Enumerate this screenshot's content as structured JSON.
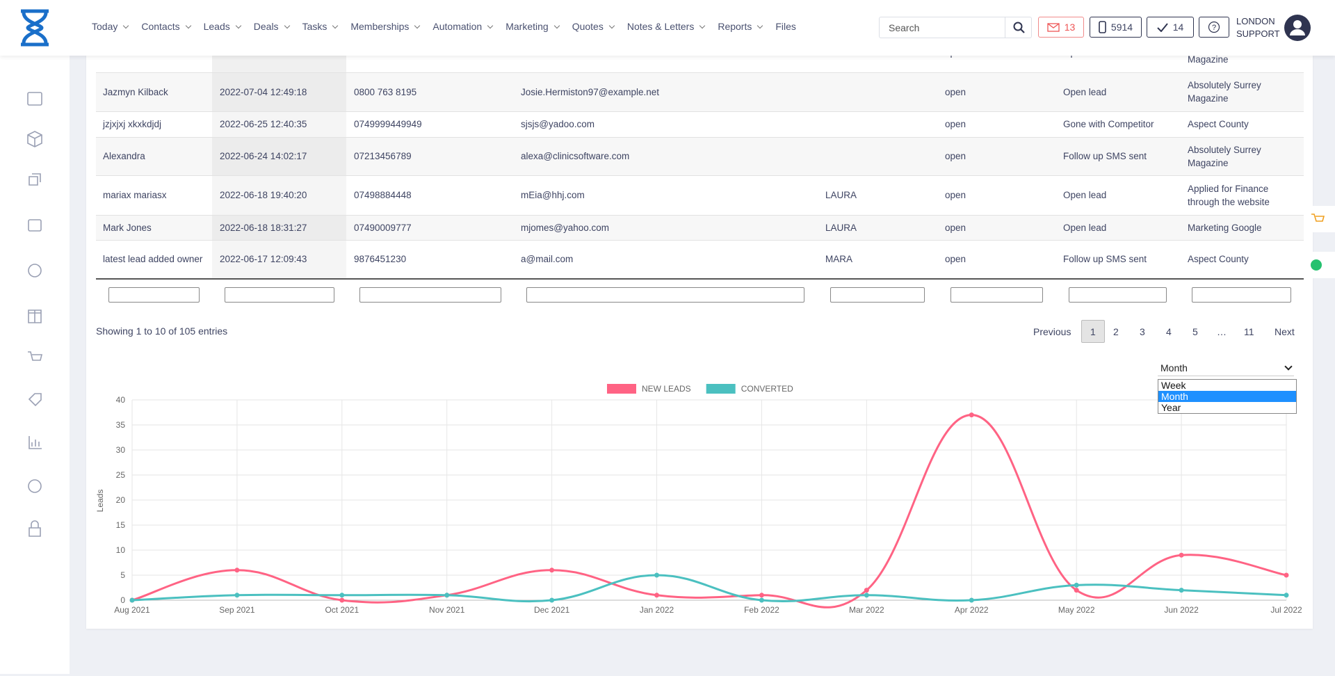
{
  "nav": {
    "items": [
      {
        "label": "Today",
        "menu": true
      },
      {
        "label": "Contacts",
        "menu": true
      },
      {
        "label": "Leads",
        "menu": true
      },
      {
        "label": "Deals",
        "menu": true
      },
      {
        "label": "Tasks",
        "menu": true
      },
      {
        "label": "Memberships",
        "menu": true
      },
      {
        "label": "Automation",
        "menu": true
      },
      {
        "label": "Marketing",
        "menu": true
      },
      {
        "label": "Quotes",
        "menu": true
      },
      {
        "label": "Notes & Letters",
        "menu": true
      },
      {
        "label": "Reports",
        "menu": true
      },
      {
        "label": "Files",
        "menu": false
      }
    ],
    "search_placeholder": "Search",
    "mail_count": "13",
    "phone_count": "5914",
    "task_count": "14",
    "user": [
      "LONDON",
      "SUPPORT"
    ]
  },
  "table": {
    "partial_row": [
      "open",
      "Open lead",
      "Magazine"
    ],
    "rows": [
      [
        "Jazmyn Kilback",
        "2022-07-04 12:49:18",
        "0800 763 8195",
        "Josie.Hermiston97@example.net",
        null,
        "open",
        "Open lead",
        "Absolutely Surrey Magazine"
      ],
      [
        "jzjxjxj xkxkdjdj",
        "2022-06-25 12:40:35",
        "0749999449949",
        "sjsjs@yadoo.com",
        null,
        "open",
        "Gone with Competitor",
        "Aspect County"
      ],
      [
        "Alexandra",
        "2022-06-24 14:02:17",
        "07213456789",
        "alexa@clinicsoftware.com",
        null,
        "open",
        "Follow up SMS sent",
        "Absolutely Surrey Magazine"
      ],
      [
        "mariax mariasx",
        "2022-06-18 19:40:20",
        "07498884448",
        "mEia@hhj.com",
        "LAURA",
        "open",
        "Open lead",
        "Applied for Finance through the website"
      ],
      [
        "Mark Jones",
        "2022-06-18 18:31:27",
        "07490009777",
        "mjomes@yahoo.com",
        "LAURA",
        "open",
        "Open lead",
        "Marketing Google"
      ],
      [
        "latest lead added owner",
        "2022-06-17 12:09:43",
        "9876451230",
        "a@mail.com",
        "MARA",
        "open",
        "Follow up SMS sent",
        "Aspect County"
      ]
    ]
  },
  "footer": {
    "info": "Showing 1 to 10 of 105 entries",
    "pages": [
      "Previous",
      "1",
      "2",
      "3",
      "4",
      "5",
      "…",
      "11",
      "Next"
    ],
    "current": "1"
  },
  "period_select": {
    "selected": "Month",
    "options": [
      "Week",
      "Month",
      "Year"
    ]
  },
  "chart_data": {
    "type": "line",
    "y_label": "Leads",
    "categories": [
      "Aug 2021",
      "Sep 2021",
      "Oct 2021",
      "Nov 2021",
      "Dec 2021",
      "Jan 2022",
      "Feb 2022",
      "Mar 2022",
      "Apr 2022",
      "May 2022",
      "Jun 2022",
      "Jul 2022"
    ],
    "series": [
      {
        "name": "NEW LEADS",
        "color": "#ff6384",
        "values": [
          0,
          6,
          0,
          1,
          6,
          1,
          1,
          2,
          37,
          2,
          9,
          5
        ]
      },
      {
        "name": "CONVERTED",
        "color": "#4bc0c0",
        "values": [
          0,
          1,
          1,
          1,
          0,
          5,
          0,
          1,
          0,
          3,
          2,
          1
        ]
      }
    ],
    "ylim": [
      0,
      40
    ],
    "yticks": [
      0,
      5,
      10,
      15,
      20,
      25,
      30,
      35,
      40
    ],
    "grid": true
  }
}
